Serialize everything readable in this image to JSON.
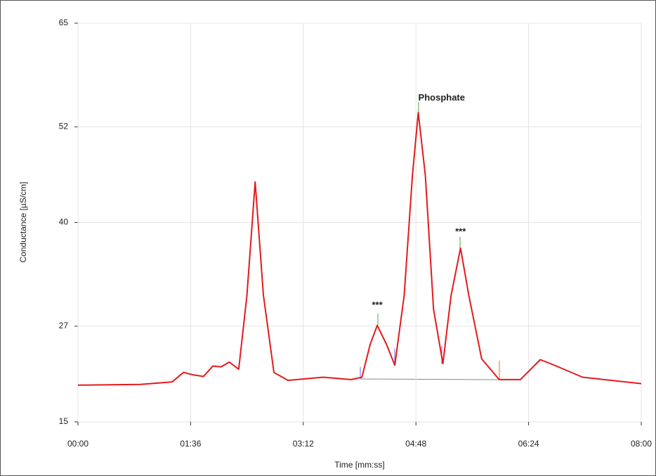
{
  "chart_data": {
    "type": "line",
    "xlabel": "Time [mm:ss]",
    "ylabel": "Conductance [µS/cm]",
    "x": [
      0,
      53,
      80,
      90,
      98,
      107,
      115,
      122,
      129,
      137,
      144,
      151,
      158,
      167,
      179,
      209,
      233,
      242,
      249,
      255,
      263,
      270,
      278,
      285,
      290,
      296,
      303,
      311,
      318,
      326,
      333,
      344,
      359,
      377,
      394,
      406,
      430,
      480
    ],
    "values": [
      19.6,
      19.7,
      20.0,
      21.2,
      20.9,
      20.7,
      22.0,
      21.9,
      22.5,
      21.6,
      30.9,
      45.1,
      30.9,
      21.2,
      20.2,
      20.6,
      20.3,
      20.6,
      24.7,
      27.1,
      24.7,
      22.1,
      30.9,
      45.9,
      53.8,
      45.9,
      29.1,
      22.3,
      30.9,
      36.8,
      30.9,
      22.9,
      20.3,
      20.3,
      22.8,
      22.1,
      20.6,
      19.8
    ],
    "color": "#e31a1c",
    "xlim": [
      0,
      480
    ],
    "xticks": [
      {
        "value": 0,
        "label": "00:00"
      },
      {
        "value": 96,
        "label": "01:36"
      },
      {
        "value": 192,
        "label": "03:12"
      },
      {
        "value": 288,
        "label": "04:48"
      },
      {
        "value": 384,
        "label": "06:24"
      },
      {
        "value": 480,
        "label": "08:00"
      }
    ],
    "ylim": [
      15,
      65
    ],
    "yticks": [
      15,
      27,
      40,
      52,
      65
    ],
    "grid": true,
    "annotations": [
      {
        "text": "Phosphate",
        "x": 290,
        "y": 55.6
      },
      {
        "text": "***",
        "x": 255,
        "y": 29.6
      },
      {
        "text": "***",
        "x": 326,
        "y": 38.8
      }
    ]
  }
}
